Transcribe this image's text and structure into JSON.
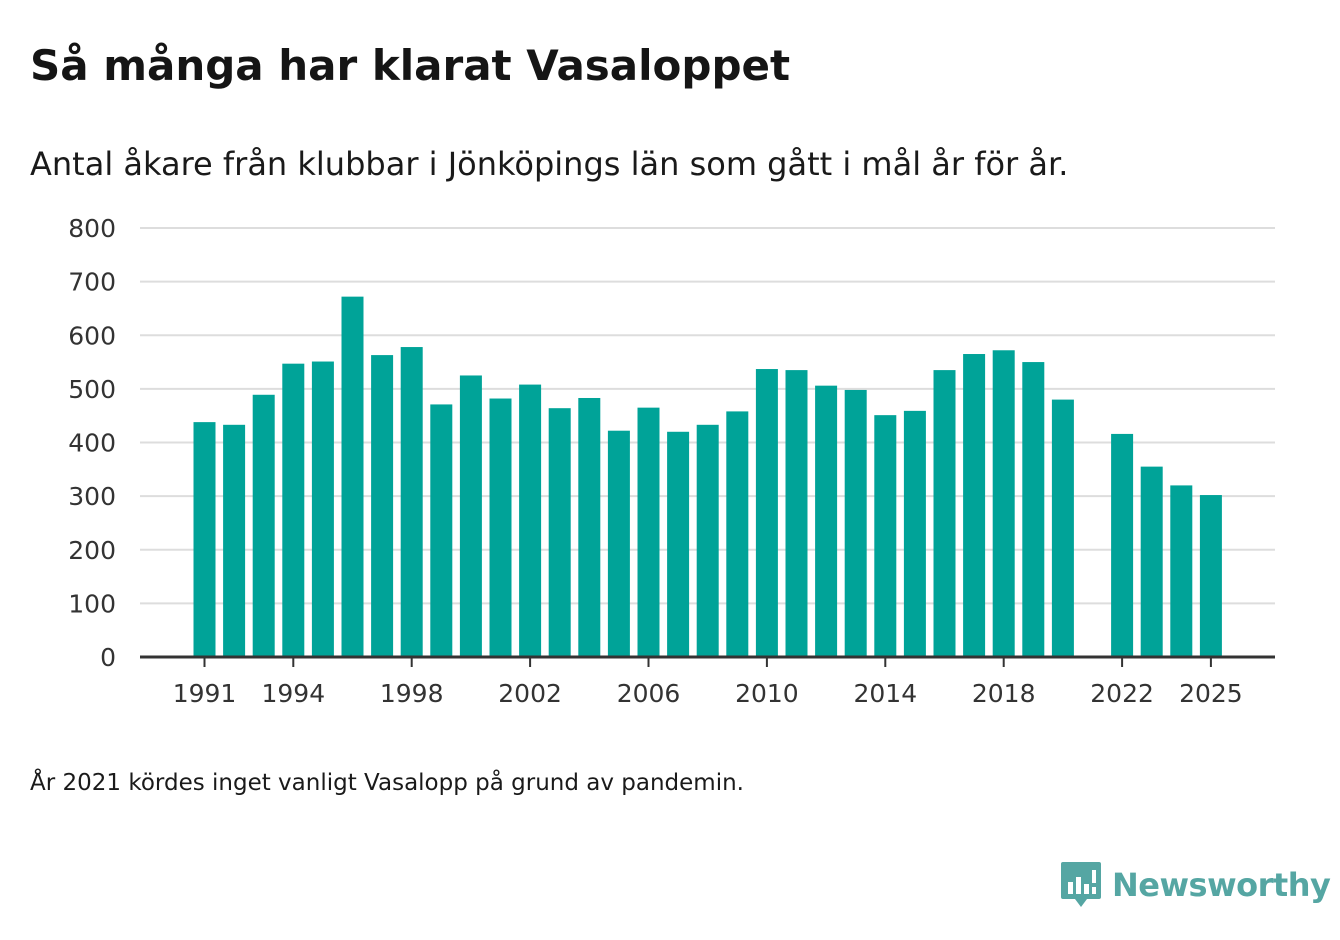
{
  "title": "Så många har klarat Vasaloppet",
  "subtitle": "Antal åkare från klubbar i Jönköpings län som gått i mål år för år.",
  "note": "År 2021 kördes inget vanligt Vasalopp på grund av pandemin.",
  "brand": {
    "name": "Newsworthy",
    "icon": "newsworthy-logo-icon"
  },
  "colors": {
    "bar": "#00a398",
    "grid": "#dddddd",
    "axis": "#333333",
    "brand": "#55a6a3"
  },
  "chart_data": {
    "type": "bar",
    "title": "Så många har klarat Vasaloppet",
    "xlabel": "",
    "ylabel": "",
    "ylim": [
      0,
      800
    ],
    "yticks": [
      0,
      100,
      200,
      300,
      400,
      500,
      600,
      700,
      800
    ],
    "x_tick_labels": [
      "1991",
      "1994",
      "1998",
      "2002",
      "2006",
      "2010",
      "2014",
      "2018",
      "2022",
      "2025"
    ],
    "grid": true,
    "legend": "none",
    "categories": [
      1991,
      1992,
      1993,
      1994,
      1995,
      1996,
      1997,
      1998,
      1999,
      2000,
      2001,
      2002,
      2003,
      2004,
      2005,
      2006,
      2007,
      2008,
      2009,
      2010,
      2011,
      2012,
      2013,
      2014,
      2015,
      2016,
      2017,
      2018,
      2019,
      2020,
      2021,
      2022,
      2023,
      2024,
      2025
    ],
    "values": [
      438,
      433,
      489,
      547,
      551,
      672,
      563,
      578,
      471,
      525,
      482,
      508,
      464,
      483,
      422,
      465,
      420,
      433,
      458,
      537,
      535,
      506,
      498,
      451,
      459,
      535,
      565,
      572,
      550,
      480,
      null,
      416,
      355,
      320,
      302
    ]
  }
}
